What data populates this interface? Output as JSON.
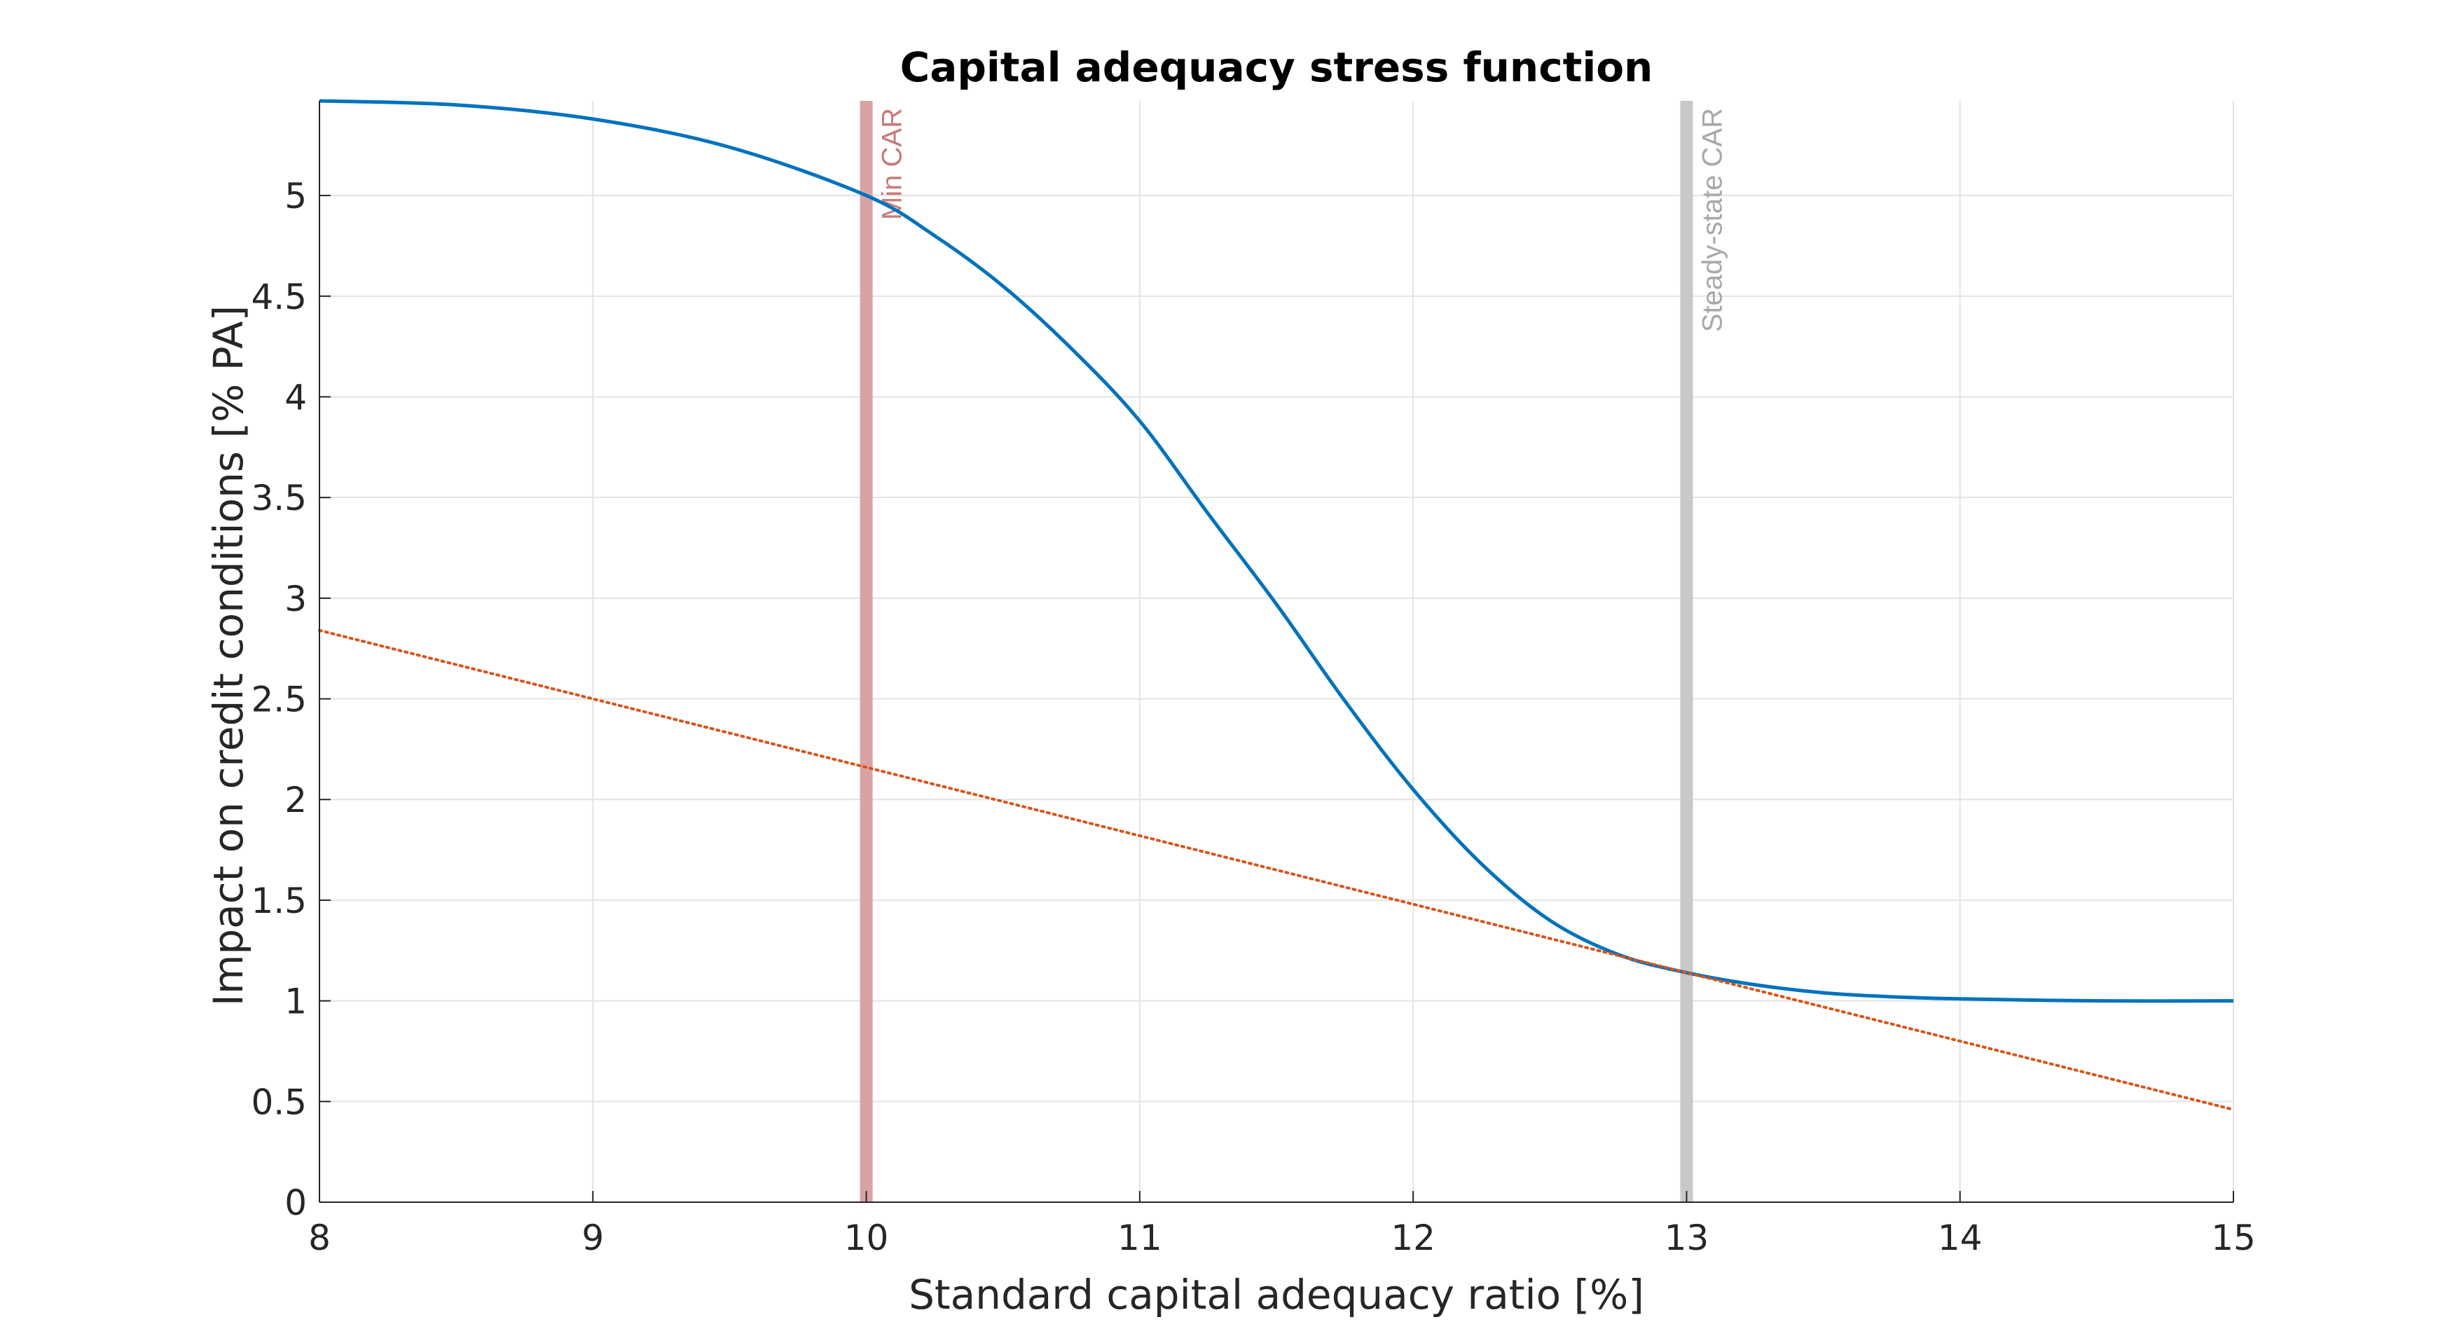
{
  "chart_data": {
    "type": "line",
    "title": "Capital adequacy stress function",
    "xlabel": "Standard capital adequacy ratio [%]",
    "ylabel": "Impact on credit conditions [% PA]",
    "xlim": [
      8,
      15
    ],
    "ylim": [
      0,
      5.47
    ],
    "xticks": [
      "8",
      "9",
      "10",
      "11",
      "12",
      "13",
      "14",
      "15"
    ],
    "yticks": [
      "0",
      "0.5",
      "1",
      "1.5",
      "2",
      "2.5",
      "3",
      "3.5",
      "4",
      "4.5",
      "5"
    ],
    "grid": true,
    "series": [
      {
        "style": "solid",
        "color": "#0072BD",
        "x": [
          8.0,
          8.5,
          9.0,
          9.5,
          10.0,
          10.25,
          10.5,
          10.75,
          11.0,
          11.25,
          11.5,
          11.75,
          12.0,
          12.25,
          12.5,
          12.75,
          13.0,
          13.25,
          13.5,
          13.75,
          14.0,
          14.5,
          15.0
        ],
        "y": [
          5.47,
          5.45,
          5.38,
          5.24,
          5.0,
          4.8,
          4.55,
          4.24,
          3.88,
          3.42,
          2.97,
          2.49,
          2.05,
          1.68,
          1.4,
          1.23,
          1.14,
          1.08,
          1.04,
          1.02,
          1.01,
          1.0,
          1.0
        ]
      },
      {
        "style": "dotted",
        "color": "#D95319",
        "x": [
          8.0,
          15.0
        ],
        "y": [
          2.84,
          0.46
        ]
      }
    ],
    "reference_lines": [
      {
        "x": 10,
        "label": "Min CAR",
        "color": "#D9A3A3",
        "label_color": "#C87A7A"
      },
      {
        "x": 13,
        "label": "Steady-state CAR",
        "color": "#C8C8C8",
        "label_color": "#A8A8A8"
      }
    ]
  }
}
